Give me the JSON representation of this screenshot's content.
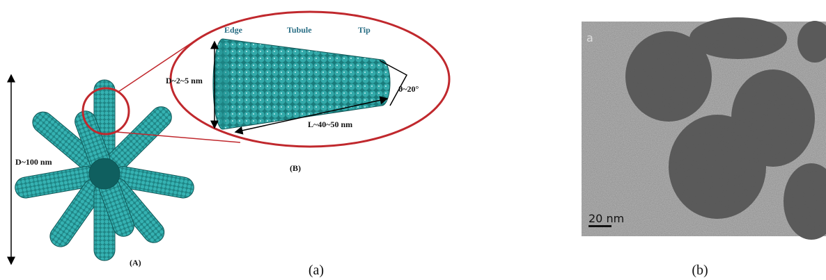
{
  "panel_a": {
    "labels": {
      "edge": "Edge",
      "tubule": "Tubule",
      "tip": "Tip",
      "angle": "θ~20°",
      "diameter_tube": "D~2~5 nm",
      "length": "L~40~50 nm",
      "diameter_particle": "D~100 nm",
      "sub_a": "(A)",
      "sub_b": "(B)"
    },
    "caption": "(a)"
  },
  "panel_b": {
    "letter": "a",
    "scale_bar": "20 nm",
    "caption": "(b)"
  }
}
